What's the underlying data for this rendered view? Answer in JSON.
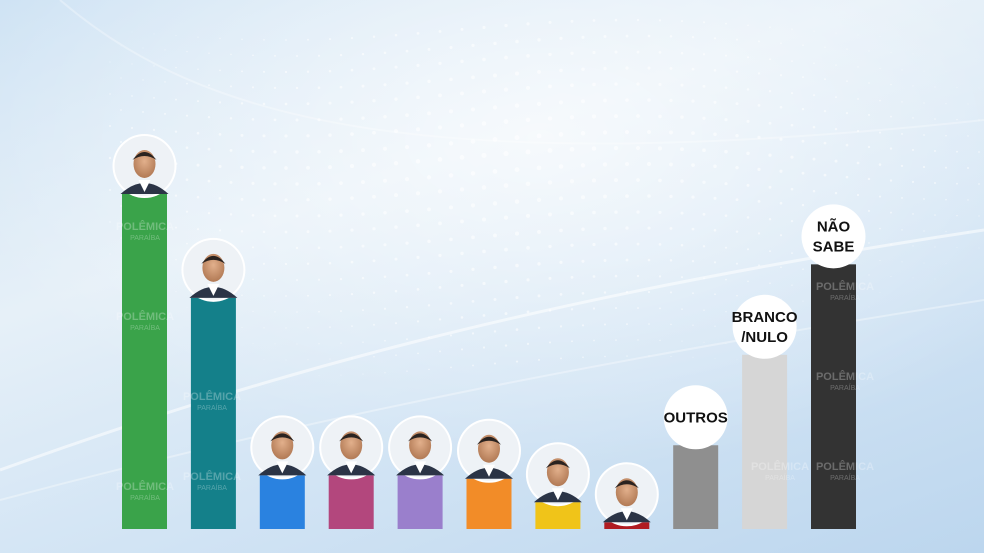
{
  "chart_data": {
    "type": "bar",
    "title": "",
    "xlabel": "",
    "ylabel": "",
    "ylim": [
      0,
      100
    ],
    "grid": false,
    "legend": "none",
    "categories": [
      {
        "label": "",
        "icon": "candidate-1-photo",
        "value": 100,
        "color": "#3aa34a"
      },
      {
        "label": "",
        "icon": "candidate-2-photo",
        "value": 69,
        "color": "#14808a"
      },
      {
        "label": "",
        "icon": "candidate-3-photo",
        "value": 16,
        "color": "#2a82e0"
      },
      {
        "label": "",
        "icon": "candidate-4-photo",
        "value": 16,
        "color": "#b3477d"
      },
      {
        "label": "",
        "icon": "candidate-5-photo",
        "value": 16,
        "color": "#9a7fcc"
      },
      {
        "label": "",
        "icon": "candidate-6-photo",
        "value": 15,
        "color": "#f28c28"
      },
      {
        "label": "",
        "icon": "candidate-7-photo",
        "value": 8,
        "color": "#f0c419"
      },
      {
        "label": "",
        "icon": "candidate-8-photo",
        "value": 2,
        "color": "#b01c22"
      },
      {
        "label": "OUTROS",
        "icon": "",
        "value": 25,
        "color": "#8f8f8f"
      },
      {
        "label": "BRANCO\n/NULO",
        "icon": "",
        "value": 52,
        "color": "#d6d6d6"
      },
      {
        "label": "NÃO\nSABE",
        "icon": "",
        "value": 79,
        "color": "#333333"
      }
    ]
  },
  "watermark": {
    "brand": "POLÊMICA",
    "sub": "PARAÍBA"
  }
}
